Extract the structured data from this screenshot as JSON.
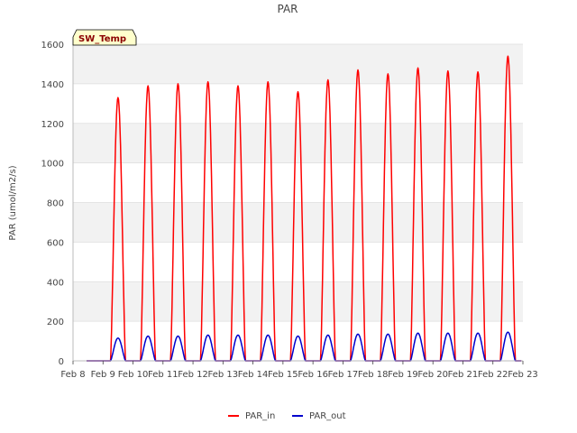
{
  "chart_data": {
    "type": "line",
    "title": "PAR",
    "xlabel": "",
    "ylabel": "PAR (umol/m2/s)",
    "ylim": [
      0,
      1600
    ],
    "xlim": [
      0,
      15
    ],
    "yticks": [
      0,
      200,
      400,
      600,
      800,
      1000,
      1200,
      1400,
      1600
    ],
    "xtick_labels": [
      "Feb 8",
      "Feb 9",
      "Feb 10",
      "Feb 11",
      "Feb 12",
      "Feb 13",
      "Feb 14",
      "Feb 15",
      "Feb 16",
      "Feb 17",
      "Feb 18",
      "Feb 19",
      "Feb 20",
      "Feb 21",
      "Feb 22",
      "Feb 23"
    ],
    "badge": "SW_Temp",
    "grid": true,
    "legend_position": "bottom-center",
    "series": [
      {
        "name": "PAR_in",
        "color": "#ff0000",
        "peak_days": [
          1.5,
          2.5,
          3.5,
          4.5,
          5.5,
          6.5,
          7.5,
          8.5,
          9.5,
          10.5,
          11.5,
          12.5,
          13.5,
          14.5
        ],
        "peak_values": [
          1330,
          1390,
          1400,
          1410,
          1390,
          1410,
          1360,
          1420,
          1470,
          1450,
          1480,
          1465,
          1460,
          1540
        ]
      },
      {
        "name": "PAR_out",
        "color": "#0000cc",
        "peak_days": [
          1.5,
          2.5,
          3.5,
          4.5,
          5.5,
          6.5,
          7.5,
          8.5,
          9.5,
          10.5,
          11.5,
          12.5,
          13.5,
          14.5
        ],
        "peak_values": [
          115,
          125,
          125,
          130,
          130,
          130,
          125,
          130,
          135,
          135,
          140,
          140,
          140,
          145
        ]
      }
    ]
  }
}
